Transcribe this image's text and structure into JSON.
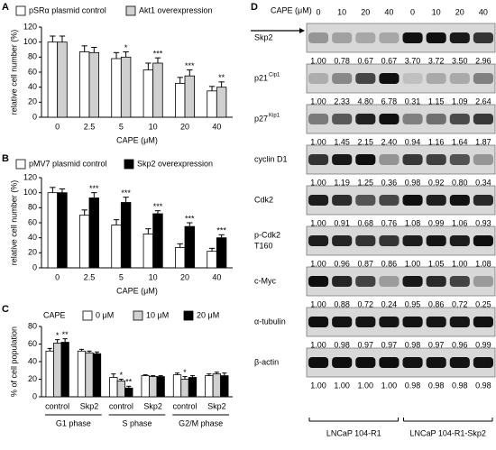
{
  "chart_data": [
    {
      "type": "bar",
      "panel": "A",
      "xlabel": "CAPE (μM)",
      "ylabel": "relative cell number (%)",
      "categories": [
        "0",
        "2.5",
        "5",
        "10",
        "20",
        "40"
      ],
      "series": [
        {
          "name": "pSRα plasmid control",
          "color": "#ffffff",
          "values": [
            100,
            87,
            78,
            63,
            45,
            35
          ],
          "errors": [
            8,
            8,
            8,
            9,
            8,
            6
          ],
          "significance": [
            null,
            null,
            null,
            null,
            null,
            null
          ]
        },
        {
          "name": "Akt1 overexpression",
          "color": "#d0d0d0",
          "values": [
            100,
            86,
            80,
            72,
            55,
            40
          ],
          "errors": [
            8,
            7,
            7,
            7,
            8,
            7
          ],
          "significance": [
            null,
            null,
            "*",
            "***",
            "***",
            "**"
          ]
        }
      ],
      "ylim": [
        0,
        120
      ],
      "yticks": [
        0,
        20,
        40,
        60,
        80,
        100,
        120
      ]
    },
    {
      "type": "bar",
      "panel": "B",
      "xlabel": "CAPE (μM)",
      "ylabel": "relative cell number (%)",
      "categories": [
        "0",
        "2.5",
        "5",
        "10",
        "20",
        "40"
      ],
      "series": [
        {
          "name": "pMV7 plasmid control",
          "color": "#ffffff",
          "values": [
            100,
            70,
            57,
            45,
            27,
            22
          ],
          "errors": [
            7,
            7,
            7,
            7,
            5,
            4
          ],
          "significance": [
            null,
            null,
            null,
            null,
            null,
            null
          ]
        },
        {
          "name": "Skp2 overexpression",
          "color": "#000000",
          "values": [
            100,
            93,
            87,
            72,
            55,
            40
          ],
          "errors": [
            5,
            7,
            7,
            4,
            5,
            4
          ],
          "significance": [
            null,
            "***",
            "***",
            "***",
            "***",
            "***"
          ]
        }
      ],
      "ylim": [
        0,
        120
      ],
      "yticks": [
        0,
        20,
        40,
        60,
        80,
        100,
        120
      ]
    },
    {
      "type": "bar",
      "panel": "C",
      "ylabel": "% of cell population",
      "legend_title": "CAPE",
      "groups": [
        {
          "name": "G1 phase",
          "categories": [
            "control",
            "Skp2"
          ]
        },
        {
          "name": "S phase",
          "categories": [
            "control",
            "Skp2"
          ]
        },
        {
          "name": "G2/M phase",
          "categories": [
            "control",
            "Skp2"
          ]
        }
      ],
      "series": [
        {
          "name": "0 μM",
          "color": "#ffffff",
          "values": [
            52,
            52,
            22,
            24,
            25,
            24
          ],
          "errors": [
            3,
            2,
            4,
            1,
            2,
            2
          ],
          "significance": [
            null,
            null,
            null,
            null,
            null,
            null
          ]
        },
        {
          "name": "10 μM",
          "color": "#d0d0d0",
          "values": [
            61,
            50,
            18,
            23,
            20,
            26
          ],
          "errors": [
            4,
            2,
            2,
            1,
            3,
            2
          ],
          "significance": [
            "*",
            null,
            "*",
            null,
            "*",
            null
          ]
        },
        {
          "name": "20 μM",
          "color": "#000000",
          "values": [
            62,
            49,
            10,
            23,
            22,
            24
          ],
          "errors": [
            4,
            2,
            2,
            1,
            2,
            3
          ],
          "significance": [
            "**",
            null,
            "**",
            null,
            null,
            null
          ]
        }
      ],
      "ylim": [
        0,
        80
      ],
      "yticks": [
        0,
        20,
        40,
        60,
        80
      ]
    }
  ],
  "blot": {
    "panel": "D",
    "xlabel": "CAPE (μM)",
    "lane_labels": [
      "0",
      "10",
      "20",
      "40",
      "0",
      "10",
      "20",
      "40"
    ],
    "groups": [
      "LNCaP 104-R1",
      "LNCaP 104-R1-Skp2"
    ],
    "rows": [
      {
        "label": "Skp2",
        "values": [
          1.0,
          0.78,
          0.67,
          0.67,
          3.7,
          3.72,
          3.5,
          2.96
        ],
        "value_labels": [
          "1.00",
          "0.78",
          "0.67",
          "0.67",
          "3.70",
          "3.72",
          "3.50",
          "2.96"
        ]
      },
      {
        "label": "p21",
        "sup": "Cip1",
        "values": [
          1.0,
          2.33,
          4.8,
          6.78,
          0.31,
          1.15,
          1.09,
          2.64
        ],
        "value_labels": [
          "1.00",
          "2.33",
          "4.80",
          "6.78",
          "0.31",
          "1.15",
          "1.09",
          "2.64"
        ]
      },
      {
        "label": "p27",
        "sup": "Kip1",
        "values": [
          1.0,
          1.45,
          2.15,
          2.4,
          0.94,
          1.16,
          1.64,
          1.87
        ],
        "value_labels": [
          "1.00",
          "1.45",
          "2.15",
          "2.40",
          "0.94",
          "1.16",
          "1.64",
          "1.87"
        ]
      },
      {
        "label": "cyclin D1",
        "values": [
          1.0,
          1.19,
          1.25,
          0.36,
          0.98,
          0.92,
          0.8,
          0.34
        ],
        "value_labels": [
          "1.00",
          "1.19",
          "1.25",
          "0.36",
          "0.98",
          "0.92",
          "0.80",
          "0.34"
        ]
      },
      {
        "label": "Cdk2",
        "values": [
          1.0,
          0.91,
          0.68,
          0.76,
          1.08,
          0.99,
          1.06,
          0.93
        ],
        "value_labels": [
          "1.00",
          "0.91",
          "0.68",
          "0.76",
          "1.08",
          "0.99",
          "1.06",
          "0.93"
        ]
      },
      {
        "label": "p-Cdk2",
        "label_line2": "T160",
        "values": [
          1.0,
          0.96,
          0.87,
          0.86,
          1.0,
          1.05,
          1.0,
          1.08
        ],
        "value_labels": [
          "1.00",
          "0.96",
          "0.87",
          "0.86",
          "1.00",
          "1.05",
          "1.00",
          "1.08"
        ]
      },
      {
        "label": "c-Myc",
        "values": [
          1.0,
          0.88,
          0.72,
          0.24,
          0.95,
          0.86,
          0.72,
          0.25
        ],
        "value_labels": [
          "1.00",
          "0.88",
          "0.72",
          "0.24",
          "0.95",
          "0.86",
          "0.72",
          "0.25"
        ]
      },
      {
        "label": "α-tubulin",
        "values": [
          1.0,
          0.98,
          0.97,
          0.97,
          0.98,
          0.97,
          0.96,
          0.99
        ],
        "value_labels": [
          "1.00",
          "0.98",
          "0.97",
          "0.97",
          "0.98",
          "0.97",
          "0.96",
          "0.99"
        ]
      },
      {
        "label": "β-actin",
        "values": [
          1.0,
          1.0,
          1.0,
          1.0,
          0.98,
          0.98,
          0.98,
          0.98
        ],
        "value_labels": [
          "1.00",
          "1.00",
          "1.00",
          "1.00",
          "0.98",
          "0.98",
          "0.98",
          "0.98"
        ]
      }
    ]
  }
}
